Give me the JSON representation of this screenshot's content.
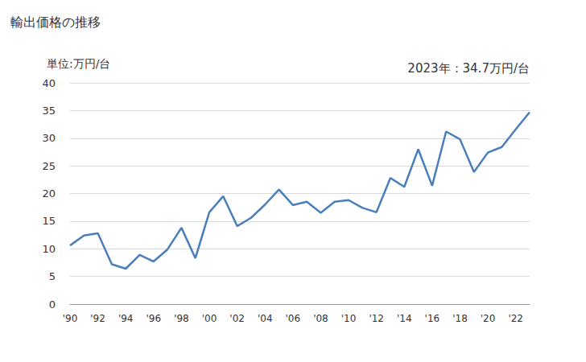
{
  "chart_data": {
    "type": "line",
    "title": "輸出価格の推移",
    "y_axis_label": "単位:万円/台",
    "annotation": "2023年：34.7万円/台",
    "categories": [
      "'90",
      null,
      "'92",
      null,
      "'94",
      null,
      "'96",
      null,
      "'98",
      null,
      "'00",
      null,
      "'02",
      null,
      "'04",
      null,
      "'06",
      null,
      "'08",
      null,
      "'10",
      null,
      "'12",
      null,
      "'14",
      null,
      "'16",
      null,
      "'18",
      null,
      "'20",
      null,
      "'22",
      null
    ],
    "values": [
      10.6,
      12.4,
      12.8,
      7.2,
      6.4,
      8.9,
      7.7,
      9.9,
      13.8,
      8.3,
      16.6,
      19.5,
      14.1,
      15.6,
      18.0,
      20.7,
      17.9,
      18.5,
      16.5,
      18.5,
      18.8,
      17.4,
      16.6,
      22.8,
      21.2,
      28.0,
      21.4,
      31.2,
      29.8,
      23.9,
      27.4,
      28.4,
      31.6,
      34.7
    ],
    "color": "#4a7ebb",
    "ylim": [
      0,
      40
    ],
    "yticks": [
      0,
      5,
      10,
      15,
      20,
      25,
      30,
      35,
      40
    ],
    "grid": true
  }
}
